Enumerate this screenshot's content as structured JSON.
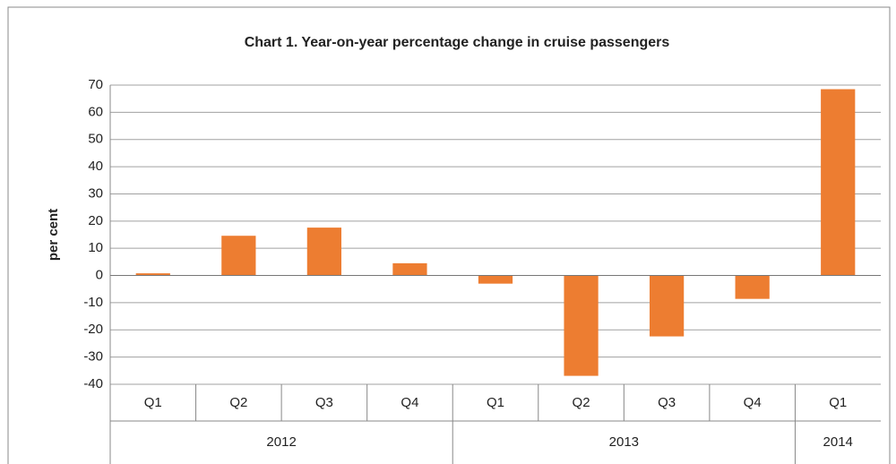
{
  "chart_data": {
    "type": "bar",
    "title": "Chart 1. Year-on-year percentage change in cruise passengers",
    "y_label": "per cent",
    "category_groups": [
      {
        "label": "2012",
        "categories": [
          "Q1",
          "Q2",
          "Q3",
          "Q4"
        ]
      },
      {
        "label": "2013",
        "categories": [
          "Q1",
          "Q2",
          "Q3",
          "Q4"
        ]
      },
      {
        "label": "2014",
        "categories": [
          "Q1"
        ]
      }
    ],
    "values": [
      0.8,
      14.6,
      17.6,
      4.5,
      -3,
      -36.9,
      -22.4,
      -8.6,
      68.5
    ],
    "color": "#ed7d31",
    "ylim": [
      -40,
      70
    ],
    "yticks": [
      -40,
      -30,
      -20,
      -10,
      0,
      10,
      20,
      30,
      40,
      50,
      60,
      70
    ],
    "grid": true
  }
}
